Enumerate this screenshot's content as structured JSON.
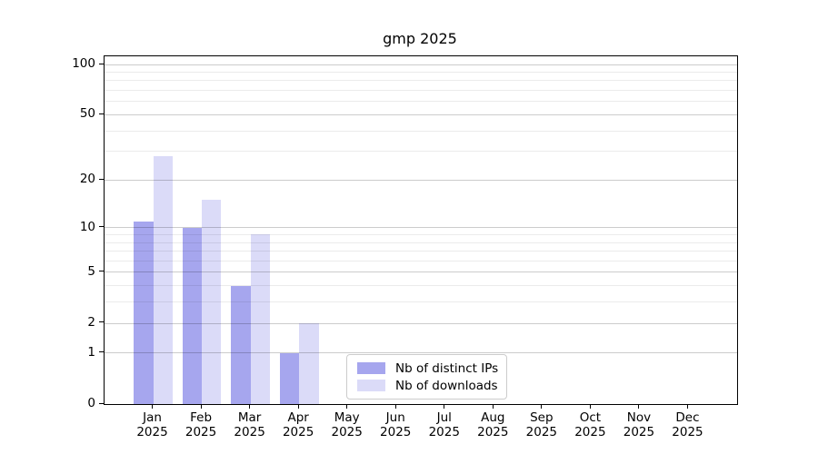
{
  "title": "gmp 2025",
  "chart_data": {
    "type": "bar",
    "title": "gmp 2025",
    "categories": [
      "Jan",
      "Feb",
      "Mar",
      "Apr",
      "May",
      "Jun",
      "Jul",
      "Aug",
      "Sep",
      "Oct",
      "Nov",
      "Dec"
    ],
    "x_tick_year": "2025",
    "series": [
      {
        "name": "Nb of distinct IPs",
        "color": "#a6a6ee",
        "values": [
          11,
          10,
          4,
          1,
          0,
          0,
          0,
          0,
          0,
          0,
          0,
          0
        ]
      },
      {
        "name": "Nb of downloads",
        "color": "#dbdbf8",
        "values": [
          28,
          15,
          9,
          2,
          0,
          0,
          0,
          0,
          0,
          0,
          0,
          0
        ]
      }
    ],
    "y_scale": "log1p",
    "y_ticks": [
      0,
      1,
      2,
      5,
      10,
      20,
      50,
      100
    ],
    "y_minor_gridlines": [
      3,
      4,
      6,
      7,
      8,
      9,
      30,
      40,
      60,
      70,
      80,
      90
    ],
    "ylim": [
      0,
      112
    ],
    "xlabel": "",
    "ylabel": "",
    "grid": true,
    "bar_width_fraction": 0.4,
    "legend_position": "lower center"
  },
  "colors": {
    "background": "#ffffff",
    "axis": "#000000",
    "grid_major": "rgba(0,0,0,0.20)",
    "grid_minor": "rgba(0,0,0,0.08)",
    "legend_border": "#cccccc",
    "text": "#000000"
  }
}
